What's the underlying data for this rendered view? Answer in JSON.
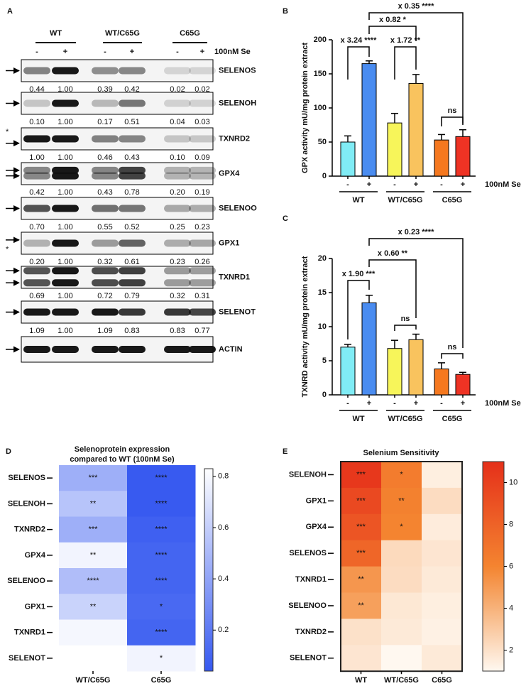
{
  "panel_labels": [
    "A",
    "B",
    "C",
    "D",
    "E"
  ],
  "blot": {
    "groups": [
      "WT",
      "WT/C65G",
      "C65G"
    ],
    "conditions": [
      "-",
      "+",
      "-",
      "+",
      "-",
      "+"
    ],
    "treatment": "100nM Se",
    "rows": [
      {
        "protein": "SELENOS",
        "quant": [
          "0.44",
          "1.00",
          "0.39",
          "0.42",
          "0.02",
          "0.02"
        ]
      },
      {
        "protein": "SELENOH",
        "quant": [
          "0.10",
          "1.00",
          "0.17",
          "0.51",
          "0.04",
          "0.03"
        ]
      },
      {
        "protein": "TXNRD2",
        "marker": "*",
        "quant": [
          "1.00",
          "1.00",
          "0.46",
          "0.43",
          "0.10",
          "0.09"
        ]
      },
      {
        "protein": "GPX4",
        "quant": [
          "0.42",
          "1.00",
          "0.43",
          "0.78",
          "0.20",
          "0.19"
        ]
      },
      {
        "protein": "SELENOO",
        "quant": [
          "0.70",
          "1.00",
          "0.55",
          "0.52",
          "0.25",
          "0.23"
        ]
      },
      {
        "protein": "GPX1",
        "marker": "*",
        "quant": [
          "0.20",
          "1.00",
          "0.32",
          "0.61",
          "0.23",
          "0.26"
        ]
      },
      {
        "protein": "TXNRD1",
        "quant": [
          "0.69",
          "1.00",
          "0.72",
          "0.79",
          "0.32",
          "0.31"
        ]
      },
      {
        "protein": "SELENOT",
        "quant": [
          "1.09",
          "1.00",
          "1.09",
          "0.83",
          "0.83",
          "0.77"
        ]
      },
      {
        "protein": "ACTIN"
      }
    ]
  },
  "chart_data": [
    {
      "type": "bar",
      "categories": [
        "-",
        "+",
        "-",
        "+",
        "-",
        "+"
      ],
      "groups": [
        "WT",
        "WT/C65G",
        "C65G"
      ],
      "xlabel": "100nM Se",
      "ylabel": "GPX activity mU/mg protein extract",
      "values": [
        50,
        165,
        78,
        136,
        53,
        58
      ],
      "errors": [
        9,
        4,
        14,
        13,
        8,
        10
      ],
      "colors": [
        "#80ecf5",
        "#4a8cf0",
        "#f7f55a",
        "#f9c35e",
        "#f5781f",
        "#ee3324"
      ],
      "ylim": [
        0,
        200
      ],
      "yticks": [
        0,
        50,
        100,
        150,
        200
      ],
      "annotations": [
        "x 3.24 ****",
        "x 1.72 **",
        "x 0.82 *",
        "x 0.35 ****",
        "ns"
      ]
    },
    {
      "type": "bar",
      "categories": [
        "-",
        "+",
        "-",
        "+",
        "-",
        "+"
      ],
      "groups": [
        "WT",
        "WT/C65G",
        "C65G"
      ],
      "xlabel": "100nM Se",
      "ylabel": "TXNRD activity mU/mg protein extract",
      "values": [
        7.0,
        13.5,
        6.8,
        8.1,
        3.8,
        3.0
      ],
      "errors": [
        0.4,
        1.1,
        1.2,
        0.8,
        0.9,
        0.3
      ],
      "colors": [
        "#80ecf5",
        "#4a8cf0",
        "#f7f55a",
        "#f9c35e",
        "#f5781f",
        "#ee3324"
      ],
      "ylim": [
        0,
        20
      ],
      "yticks": [
        0,
        5,
        10,
        15,
        20
      ],
      "annotations": [
        "x 1.90 ***",
        "ns",
        "x 0.60 **",
        "x 0.23 ****",
        "ns"
      ]
    },
    {
      "type": "heatmap",
      "title": [
        "Selenoprotein expression",
        "compared to WT (100nM Se)"
      ],
      "rows": [
        "SELENOS",
        "SELENOH",
        "TXNRD2",
        "GPX4",
        "SELENOO",
        "GPX1",
        "TXNRD1",
        "SELENOT"
      ],
      "columns": [
        "WT/C65G",
        "C65G"
      ],
      "values": [
        [
          0.45,
          0.05
        ],
        [
          0.55,
          0.05
        ],
        [
          0.45,
          0.08
        ],
        [
          0.78,
          0.1
        ],
        [
          0.52,
          0.1
        ],
        [
          0.62,
          0.12
        ],
        [
          0.79,
          0.1
        ],
        [
          0.83,
          0.78
        ]
      ],
      "stars": [
        [
          "***",
          "****"
        ],
        [
          "**",
          "****"
        ],
        [
          "***",
          "****"
        ],
        [
          "**",
          "****"
        ],
        [
          "****",
          "****"
        ],
        [
          "**",
          "*"
        ],
        [
          null,
          "****"
        ],
        [
          null,
          "*"
        ]
      ],
      "zlim": [
        0.04,
        0.83
      ],
      "zticks": [
        0.2,
        0.4,
        0.6,
        0.8
      ]
    },
    {
      "type": "heatmap",
      "title": [
        "Selenium Sensitivity"
      ],
      "rows": [
        "SELENOH",
        "GPX1",
        "GPX4",
        "SELENOS",
        "TXNRD1",
        "SELENOO",
        "TXNRD2",
        "SELENOT"
      ],
      "columns": [
        "WT",
        "WT/C65G",
        "C65G"
      ],
      "values": [
        [
          10.5,
          6.5,
          1.4
        ],
        [
          9.5,
          6.2,
          2.2
        ],
        [
          8.8,
          6.0,
          1.5
        ],
        [
          7.8,
          2.3,
          1.8
        ],
        [
          5.2,
          2.2,
          1.6
        ],
        [
          4.8,
          1.7,
          1.4
        ],
        [
          2.0,
          1.6,
          1.3
        ],
        [
          1.8,
          1.0,
          1.6
        ]
      ],
      "stars": [
        [
          "***",
          "*",
          null
        ],
        [
          "***",
          "**",
          null
        ],
        [
          "***",
          "*",
          null
        ],
        [
          "***",
          null,
          null
        ],
        [
          "**",
          null,
          null
        ],
        [
          "**",
          null,
          null
        ],
        [
          null,
          null,
          null
        ],
        [
          null,
          null,
          null
        ]
      ],
      "zlim": [
        1,
        11
      ],
      "zticks": [
        2,
        4,
        6,
        8,
        10
      ]
    }
  ]
}
